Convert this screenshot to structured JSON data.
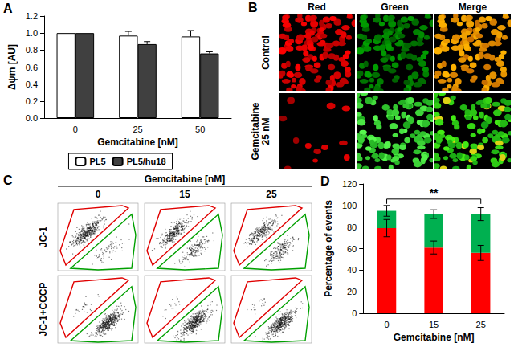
{
  "panel_labels": [
    "A",
    "B",
    "C",
    "D"
  ],
  "chart_data": [
    {
      "type": "bar",
      "x_label": "Gemcitabine [nM]",
      "y_label": "Δψm [AU]",
      "categories": [
        "0",
        "25",
        "50"
      ],
      "series": [
        {
          "name": "PL5",
          "color": "#ffffff",
          "values": [
            1.0,
            0.97,
            0.96
          ],
          "errors": [
            0,
            0.05,
            0.07
          ]
        },
        {
          "name": "PL5/hu18",
          "color": "#404040",
          "values": [
            1.0,
            0.87,
            0.76
          ],
          "errors": [
            0,
            0.03,
            0.02
          ]
        }
      ],
      "ylim": [
        0,
        1.2
      ],
      "yticks": [
        {
          "value": 0,
          "label": "0.0"
        },
        0.2,
        0.4,
        0.6,
        0.8,
        {
          "value": 1,
          "label": "1.0"
        },
        1.2
      ],
      "grid": false,
      "legend": "bottom"
    },
    {
      "type": "bar",
      "stacked": true,
      "x_label": "Gemcitabine [nM]",
      "y_label": "Percentage of events",
      "categories": [
        "0",
        "15",
        "25"
      ],
      "series": [
        {
          "color": "#ff0000",
          "values": [
            79,
            61,
            56
          ],
          "errors": [
            8,
            6,
            7
          ]
        },
        {
          "color": "#00b050",
          "values": [
            16,
            31,
            36
          ],
          "errors": [
            5,
            4,
            6
          ]
        }
      ],
      "ylim": [
        0,
        120
      ],
      "yticks": [
        0,
        20,
        40,
        60,
        80,
        100,
        120
      ],
      "grid": false,
      "annotations": [
        {
          "text": "**",
          "between": [
            "0",
            "25"
          ]
        }
      ]
    }
  ],
  "panel_b": {
    "columns": [
      "Red",
      "Green",
      "Merge"
    ],
    "rows": [
      [
        "Control"
      ],
      [
        "Gemcitabine",
        "25 nM"
      ]
    ]
  },
  "panel_c": {
    "title": "Gemcitabine [nM]",
    "columns": [
      "0",
      "15",
      "25"
    ],
    "rows": [
      "JC-1",
      "JC-1+CCCP"
    ]
  }
}
